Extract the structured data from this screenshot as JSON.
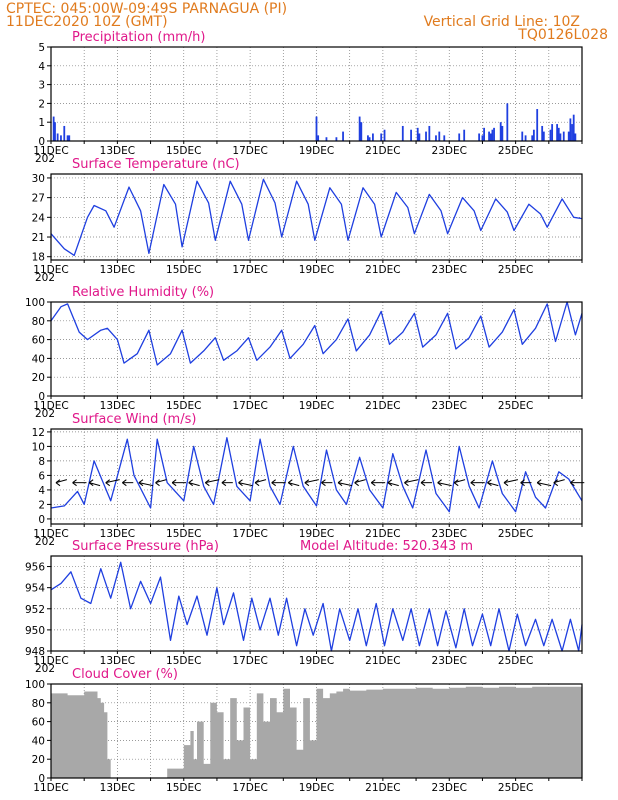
{
  "header": {
    "line1": "CPTEC:   045:00W-09:49S   PARNAGUA (PI)",
    "line2": "11DEC2020 10Z (GMT)",
    "grid_note": "Vertical Grid Line: 10Z",
    "code": "TQ0126L028"
  },
  "colors": {
    "header": "#e07b1e",
    "title": "#e0188a",
    "series": "#1f3fe0",
    "cloud": "#a8a8a8",
    "arrow": "#000000"
  },
  "x_axis": {
    "ticks": [
      "11DEC",
      "13DEC",
      "15DEC",
      "17DEC",
      "19DEC",
      "21DEC",
      "23DEC",
      "25DEC"
    ],
    "cut_label": "202"
  },
  "chart_data": [
    {
      "type": "bar",
      "title": "Precipitation (mm/h)",
      "ylim": [
        0,
        5
      ],
      "yticks": [
        0,
        1,
        2,
        3,
        4,
        5
      ],
      "x_days": [
        0.08,
        0.12,
        0.2,
        0.3,
        0.4,
        0.5,
        0.55,
        8.0,
        8.05,
        8.3,
        8.6,
        8.8,
        9.3,
        9.35,
        9.55,
        9.6,
        9.7,
        9.95,
        10.05,
        10.6,
        10.85,
        11.05,
        11.1,
        11.3,
        11.4,
        11.6,
        11.7,
        11.85,
        12.3,
        12.45,
        12.9,
        13.0,
        13.05,
        13.2,
        13.25,
        13.3,
        13.35,
        13.55,
        13.6,
        13.75,
        14.2,
        14.3,
        14.5,
        14.55,
        14.65,
        14.8,
        14.85,
        15.05,
        15.1,
        15.25,
        15.3,
        15.35,
        15.45,
        15.6,
        15.65,
        15.7,
        15.75,
        15.8
      ],
      "values": [
        1.3,
        1.0,
        0.4,
        0.3,
        0.8,
        0.3,
        0.3,
        1.3,
        0.3,
        0.2,
        0.2,
        0.5,
        1.3,
        1.0,
        0.3,
        0.2,
        0.4,
        0.4,
        0.6,
        0.8,
        0.6,
        0.7,
        0.4,
        0.5,
        0.8,
        0.3,
        0.5,
        0.3,
        0.4,
        0.6,
        0.4,
        0.3,
        0.7,
        0.5,
        0.4,
        0.6,
        0.7,
        1.0,
        0.8,
        2.0,
        0.5,
        0.3,
        0.3,
        0.6,
        1.7,
        0.8,
        0.5,
        0.6,
        0.9,
        0.9,
        0.7,
        0.4,
        0.5,
        0.5,
        1.2,
        0.9,
        1.4,
        0.4
      ]
    },
    {
      "type": "line",
      "title": "Surface Temperature (nC)",
      "ylim": [
        17.5,
        30.6
      ],
      "yticks": [
        18,
        21,
        24,
        27,
        30
      ],
      "x_days": [
        0,
        0.4,
        0.7,
        1.1,
        1.3,
        1.65,
        1.9,
        2.35,
        2.7,
        2.95,
        3.4,
        3.75,
        3.95,
        4.4,
        4.75,
        4.95,
        5.4,
        5.75,
        5.95,
        6.4,
        6.75,
        6.95,
        7.4,
        7.75,
        7.95,
        8.4,
        8.75,
        8.95,
        9.4,
        9.75,
        9.95,
        10.4,
        10.75,
        10.95,
        11.4,
        11.75,
        11.95,
        12.4,
        12.75,
        12.95,
        13.4,
        13.75,
        13.95,
        14.4,
        14.75,
        14.95,
        15.4,
        15.75,
        16.0
      ],
      "values": [
        21.5,
        19.2,
        18.2,
        24.0,
        25.8,
        25.0,
        22.5,
        28.6,
        25.0,
        18.5,
        29.0,
        26.0,
        19.5,
        29.5,
        26.2,
        20.5,
        29.5,
        26.0,
        20.5,
        29.8,
        26.2,
        21.0,
        29.5,
        26.0,
        20.5,
        28.5,
        26.0,
        20.5,
        28.5,
        26.0,
        21.0,
        27.8,
        25.5,
        21.5,
        27.5,
        25.0,
        21.5,
        27.0,
        25.0,
        22.0,
        26.8,
        24.8,
        22.0,
        26.0,
        24.5,
        22.5,
        26.8,
        24.0,
        23.8
      ]
    },
    {
      "type": "line",
      "title": "Relative Humidity (%)",
      "ylim": [
        0,
        100
      ],
      "yticks": [
        0,
        20,
        40,
        60,
        80,
        100
      ],
      "x_days": [
        0,
        0.3,
        0.5,
        0.85,
        1.1,
        1.5,
        1.7,
        2.0,
        2.2,
        2.6,
        2.95,
        3.2,
        3.6,
        3.95,
        4.2,
        4.6,
        4.95,
        5.2,
        5.6,
        5.95,
        6.2,
        6.6,
        6.95,
        7.2,
        7.6,
        7.95,
        8.2,
        8.6,
        8.95,
        9.2,
        9.6,
        9.95,
        10.2,
        10.6,
        10.95,
        11.2,
        11.6,
        11.95,
        12.2,
        12.6,
        12.95,
        13.2,
        13.6,
        13.95,
        14.2,
        14.6,
        14.95,
        15.2,
        15.55,
        15.8,
        16.0
      ],
      "values": [
        80,
        95,
        98,
        68,
        60,
        70,
        72,
        60,
        35,
        45,
        70,
        33,
        45,
        70,
        35,
        48,
        62,
        38,
        48,
        62,
        38,
        52,
        70,
        40,
        55,
        75,
        45,
        60,
        82,
        48,
        65,
        90,
        55,
        68,
        88,
        52,
        65,
        88,
        50,
        62,
        85,
        52,
        68,
        92,
        55,
        72,
        98,
        58,
        100,
        65,
        88
      ]
    },
    {
      "type": "line",
      "title": "Surface Wind (m/s)",
      "ylim": [
        -0.7,
        12.4
      ],
      "yticks": [
        0,
        2,
        4,
        6,
        8,
        10,
        12
      ],
      "x_days": [
        0,
        0.4,
        0.8,
        1.0,
        1.3,
        1.8,
        2.3,
        2.5,
        3.0,
        3.2,
        3.5,
        4.0,
        4.3,
        4.6,
        4.9,
        5.3,
        5.6,
        6.0,
        6.3,
        6.6,
        6.9,
        7.3,
        7.6,
        8.0,
        8.3,
        8.6,
        8.9,
        9.3,
        9.6,
        10.0,
        10.3,
        10.6,
        10.9,
        11.3,
        11.6,
        12.0,
        12.3,
        12.6,
        12.9,
        13.3,
        13.6,
        14.0,
        14.3,
        14.6,
        14.9,
        15.3,
        15.6,
        16.0
      ],
      "values": [
        1.5,
        1.8,
        3.8,
        2.0,
        8.0,
        2.5,
        11.0,
        6.0,
        1.5,
        11.0,
        5.0,
        2.5,
        10.0,
        4.5,
        2.0,
        11.2,
        4.5,
        2.5,
        11.0,
        4.5,
        2.0,
        10.0,
        4.5,
        1.8,
        9.5,
        4.0,
        2.0,
        8.5,
        4.0,
        1.5,
        9.0,
        4.5,
        1.5,
        9.5,
        3.5,
        1.0,
        10.0,
        4.5,
        1.5,
        8.0,
        3.5,
        1.0,
        6.5,
        3.0,
        1.5,
        6.5,
        5.5,
        2.5
      ]
    },
    {
      "type": "line",
      "title": "Surface Pressure (hPa)",
      "annotation": "Model Altitude: 520.343 m",
      "ylim": [
        948,
        957
      ],
      "yticks": [
        948,
        950,
        952,
        954,
        956
      ],
      "x_days": [
        0,
        0.3,
        0.6,
        0.9,
        1.2,
        1.5,
        1.8,
        2.1,
        2.4,
        2.7,
        3.0,
        3.3,
        3.6,
        3.85,
        4.1,
        4.4,
        4.7,
        5.0,
        5.2,
        5.5,
        5.8,
        6.05,
        6.3,
        6.6,
        6.85,
        7.1,
        7.4,
        7.65,
        7.9,
        8.2,
        8.45,
        8.7,
        9.0,
        9.25,
        9.5,
        9.8,
        10.05,
        10.3,
        10.6,
        10.85,
        11.1,
        11.4,
        11.65,
        11.9,
        12.2,
        12.45,
        12.7,
        13.0,
        13.25,
        13.5,
        13.8,
        14.05,
        14.3,
        14.6,
        14.85,
        15.1,
        15.4,
        15.65,
        15.9,
        16.0
      ],
      "values": [
        953.8,
        954.4,
        955.5,
        953.0,
        952.5,
        955.8,
        953.0,
        956.4,
        952.0,
        954.6,
        952.5,
        955.0,
        949.0,
        953.2,
        950.5,
        953.2,
        949.5,
        954.0,
        950.5,
        953.5,
        949.0,
        953.0,
        950.0,
        953.0,
        949.5,
        953.0,
        948.5,
        952.0,
        949.5,
        952.5,
        948.0,
        952.0,
        949.0,
        952.0,
        948.5,
        952.5,
        948.5,
        952.0,
        949.0,
        952.0,
        948.5,
        952.0,
        948.5,
        951.8,
        948.3,
        952.0,
        948.5,
        951.5,
        948.5,
        952.0,
        948.0,
        951.5,
        948.5,
        951.0,
        948.5,
        951.0,
        948.0,
        951.0,
        948.0,
        950.5
      ]
    },
    {
      "type": "bar",
      "title": "Cloud Cover (%)",
      "ylim": [
        0,
        100
      ],
      "yticks": [
        0,
        20,
        40,
        60,
        80,
        100
      ],
      "x_days": [
        0.0,
        0.5,
        1.0,
        1.4,
        1.5,
        1.6,
        1.7,
        1.8,
        1.9,
        2.0,
        2.1,
        2.2,
        2.3,
        2.5,
        3.0,
        3.4,
        3.5,
        4.0,
        4.2,
        4.3,
        4.4,
        4.6,
        4.8,
        5.0,
        5.2,
        5.4,
        5.6,
        5.8,
        6.0,
        6.2,
        6.4,
        6.6,
        6.8,
        7.0,
        7.2,
        7.4,
        7.6,
        7.8,
        8.0,
        8.2,
        8.4,
        8.6,
        8.8,
        9.0,
        9.5,
        10.0,
        10.5,
        11.0,
        11.5,
        12.0,
        12.5,
        13.0,
        13.5,
        14.0,
        14.5,
        15.0,
        15.5,
        16.0
      ],
      "values": [
        90,
        88,
        92,
        85,
        80,
        70,
        20,
        0,
        0,
        0,
        0,
        0,
        0,
        0,
        0,
        0,
        10,
        35,
        50,
        20,
        60,
        15,
        80,
        70,
        20,
        85,
        40,
        75,
        20,
        90,
        60,
        85,
        70,
        95,
        75,
        30,
        85,
        40,
        95,
        85,
        90,
        92,
        95,
        93,
        94,
        95,
        95,
        96,
        95,
        96,
        97,
        96,
        97,
        96,
        97,
        97,
        97,
        97
      ]
    }
  ]
}
